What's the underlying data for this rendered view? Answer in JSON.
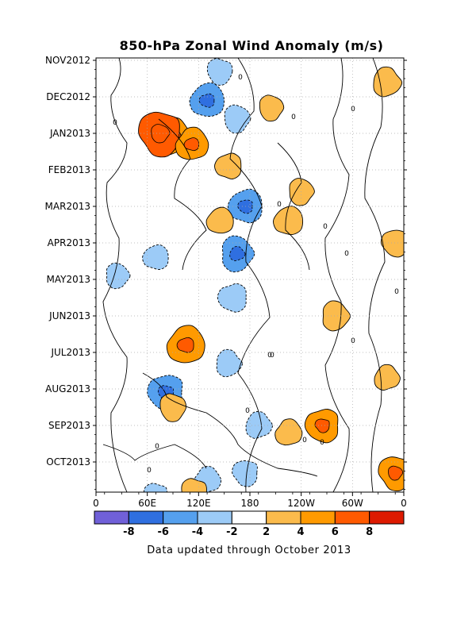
{
  "chart_data": {
    "type": "heatmap",
    "title": "850-hPa Zonal Wind Anomaly (m/s)",
    "footer": "Data updated through October 2013",
    "xlabel": "",
    "ylabel": "",
    "x_tick_labels": [
      "0",
      "60E",
      "120E",
      "180",
      "120W",
      "60W",
      "0"
    ],
    "y_tick_labels": [
      "NOV2012",
      "DEC2012",
      "JAN2013",
      "FEB2013",
      "MAR2013",
      "APR2013",
      "MAY2013",
      "JUN2013",
      "JUL2013",
      "AUG2013",
      "SEP2013",
      "OCT2013"
    ],
    "contour_label": "0",
    "colorbar": {
      "labels": [
        "-8",
        "-6",
        "-4",
        "-2",
        "2",
        "4",
        "6",
        "8"
      ],
      "colors": [
        "#7060d8",
        "#2f6fe0",
        "#55a0ee",
        "#9ccbf7",
        "#ffffff",
        "#fbbb4c",
        "#ff9a00",
        "#ff5a00",
        "#dd1a00"
      ]
    },
    "anomaly_regions": [
      {
        "lon": 90,
        "time": 2.1,
        "value": 5,
        "sign": "positive"
      },
      {
        "lon": 75,
        "time": 2.0,
        "value": 6.5,
        "sign": "positive"
      },
      {
        "lon": 112,
        "time": 2.3,
        "value": 4.2,
        "sign": "positive"
      },
      {
        "lon": 145,
        "time": 0.3,
        "value": -3,
        "sign": "negative"
      },
      {
        "lon": 130,
        "time": 1.1,
        "value": -4.5,
        "sign": "negative"
      },
      {
        "lon": 165,
        "time": 1.6,
        "value": -3.2,
        "sign": "negative"
      },
      {
        "lon": 175,
        "time": 4.0,
        "value": -4.5,
        "sign": "negative"
      },
      {
        "lon": 165,
        "time": 5.3,
        "value": -4.6,
        "sign": "negative"
      },
      {
        "lon": 160,
        "time": 6.5,
        "value": -3.5,
        "sign": "negative"
      },
      {
        "lon": 155,
        "time": 8.3,
        "value": -3,
        "sign": "negative"
      },
      {
        "lon": 82,
        "time": 9.1,
        "value": -5,
        "sign": "negative"
      },
      {
        "lon": 190,
        "time": 10.0,
        "value": -3,
        "sign": "negative"
      },
      {
        "lon": 175,
        "time": 11.3,
        "value": -3,
        "sign": "negative"
      },
      {
        "lon": 130,
        "time": 11.5,
        "value": -3,
        "sign": "negative"
      },
      {
        "lon": 70,
        "time": 11.9,
        "value": -2.6,
        "sign": "negative"
      },
      {
        "lon": 105,
        "time": 7.8,
        "value": 5.2,
        "sign": "positive"
      },
      {
        "lon": 90,
        "time": 9.5,
        "value": 3.2,
        "sign": "positive"
      },
      {
        "lon": 225,
        "time": 4.4,
        "value": 3.5,
        "sign": "positive"
      },
      {
        "lon": 240,
        "time": 3.6,
        "value": 3,
        "sign": "positive"
      },
      {
        "lon": 155,
        "time": 2.9,
        "value": 3,
        "sign": "positive"
      },
      {
        "lon": 280,
        "time": 7.0,
        "value": 3.5,
        "sign": "positive"
      },
      {
        "lon": 265,
        "time": 10.0,
        "value": 4.5,
        "sign": "positive"
      },
      {
        "lon": 340,
        "time": 0.6,
        "value": 3.5,
        "sign": "positive"
      },
      {
        "lon": 350,
        "time": 5.0,
        "value": 3.2,
        "sign": "positive"
      },
      {
        "lon": 340,
        "time": 8.7,
        "value": 2.8,
        "sign": "positive"
      },
      {
        "lon": 350,
        "time": 11.3,
        "value": 4.5,
        "sign": "positive"
      },
      {
        "lon": 225,
        "time": 10.2,
        "value": 3,
        "sign": "positive"
      },
      {
        "lon": 115,
        "time": 11.8,
        "value": 3,
        "sign": "positive"
      },
      {
        "lon": 145,
        "time": 4.4,
        "value": 3,
        "sign": "positive"
      },
      {
        "lon": 205,
        "time": 1.3,
        "value": 2.8,
        "sign": "positive"
      },
      {
        "lon": 70,
        "time": 5.4,
        "value": -2.8,
        "sign": "negative"
      },
      {
        "lon": 25,
        "time": 5.9,
        "value": -2.7,
        "sign": "negative"
      }
    ],
    "lon_range": [
      0,
      360
    ],
    "time_range_months": [
      0,
      12
    ],
    "grid": true
  }
}
